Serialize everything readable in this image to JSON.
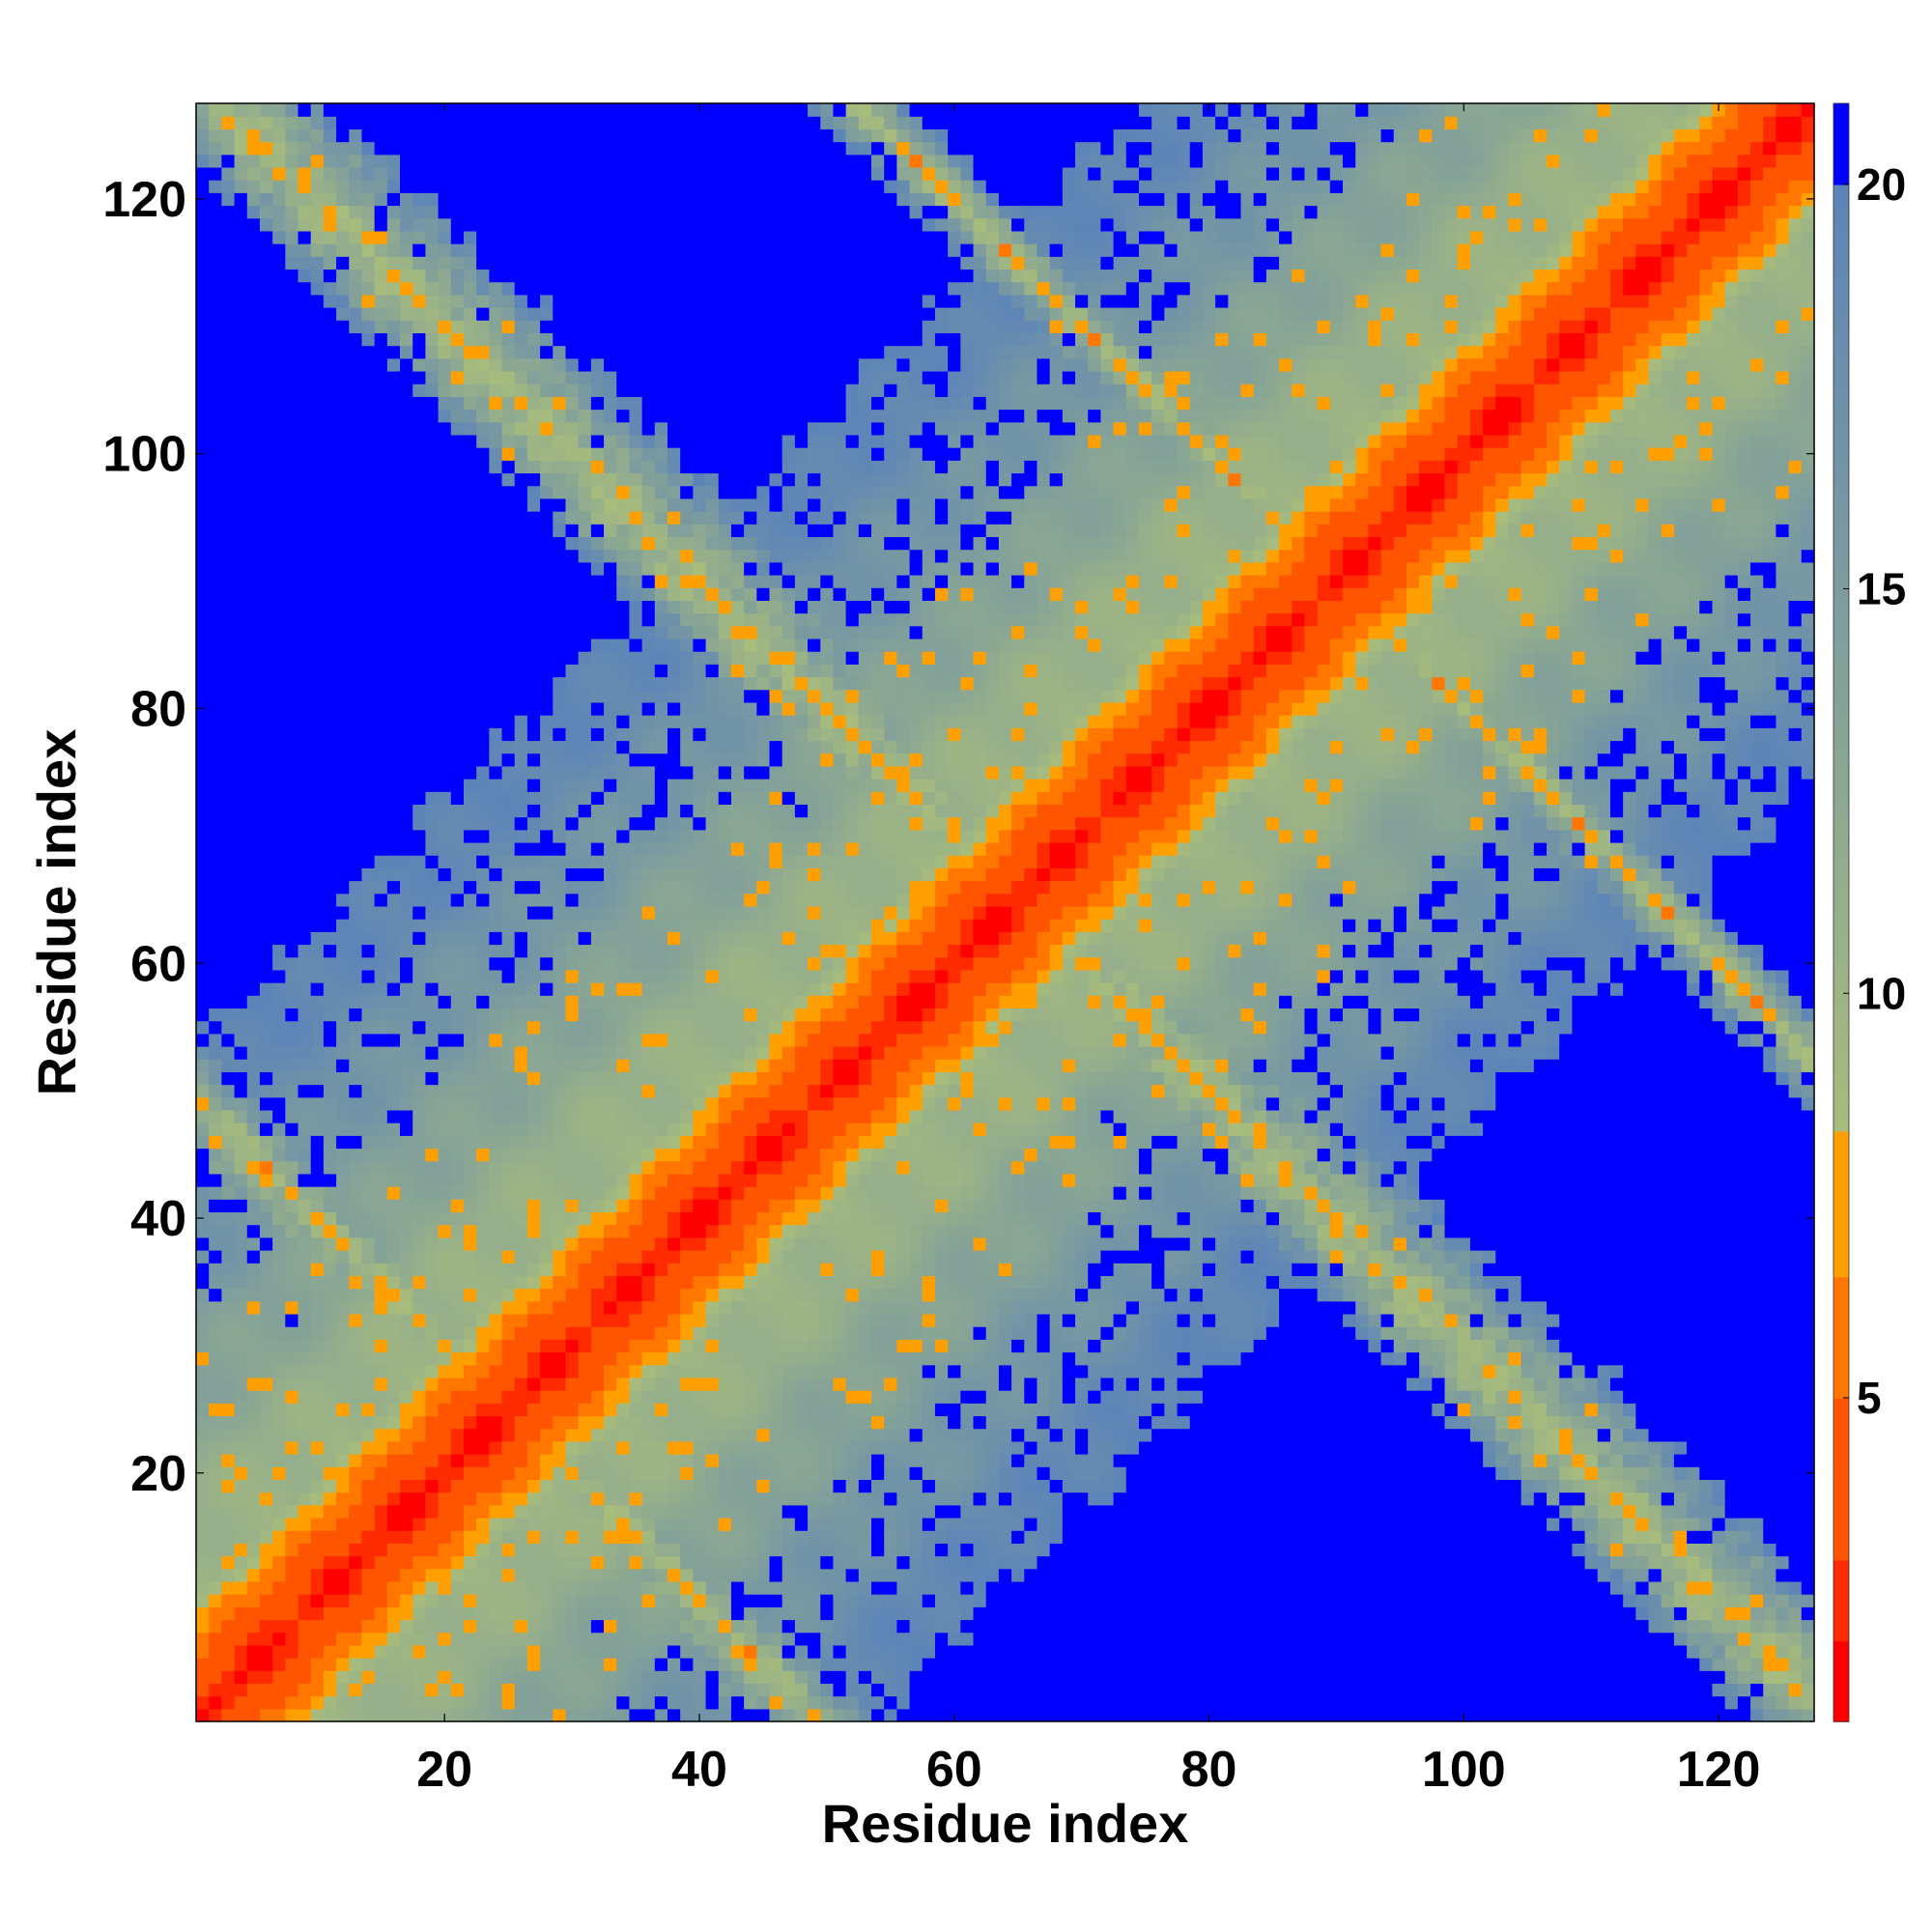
{
  "chart_data": {
    "type": "heatmap",
    "title": "",
    "xlabel": "Residue index",
    "ylabel": "Residue index",
    "n_residues": 127,
    "xlim": [
      1,
      127
    ],
    "ylim": [
      1,
      127
    ],
    "x_ticks": [
      20,
      40,
      60,
      80,
      100,
      120
    ],
    "y_ticks": [
      20,
      40,
      60,
      80,
      100,
      120
    ],
    "x_tick_labels": [
      "20",
      "40",
      "60",
      "80",
      "100",
      "120"
    ],
    "y_tick_labels": [
      "20",
      "40",
      "60",
      "80",
      "100",
      "120"
    ],
    "colorbar": {
      "range": [
        1,
        21
      ],
      "ticks": [
        5,
        10,
        15,
        20
      ],
      "tick_labels": [
        "5",
        "10",
        "15",
        "20"
      ],
      "stops": [
        {
          "value": 1,
          "color": "#ff0000"
        },
        {
          "value": 3,
          "color": "#ff2200"
        },
        {
          "value": 5,
          "color": "#ff6600"
        },
        {
          "value": 7,
          "color": "#ff9900"
        },
        {
          "value": 8.3,
          "color": "#ffbb00"
        },
        {
          "value": 8.4,
          "color": "#a3b87a"
        },
        {
          "value": 10,
          "color": "#99b98a"
        },
        {
          "value": 13,
          "color": "#85a99a"
        },
        {
          "value": 16,
          "color": "#6e91ad"
        },
        {
          "value": 19.5,
          "color": "#6085b2"
        },
        {
          "value": 20,
          "color": "#5b84b8"
        },
        {
          "value": 20.01,
          "color": "#0000ff"
        },
        {
          "value": 21,
          "color": "#0000ff"
        }
      ]
    },
    "structure": {
      "description_free": true,
      "helices": [
        [
          1,
          47
        ],
        [
          47,
          75
        ],
        [
          75,
          127
        ]
      ],
      "contact_band_centers": [
        {
          "diag_sum": 50,
          "i_range": [
            1,
            50
          ]
        },
        {
          "diag_sum": 130,
          "i_range": [
            2,
            127
          ]
        },
        {
          "diag_sum": 180,
          "i_range": [
            53,
            127
          ]
        }
      ]
    },
    "grid": false,
    "legend": "colorbar-right"
  }
}
